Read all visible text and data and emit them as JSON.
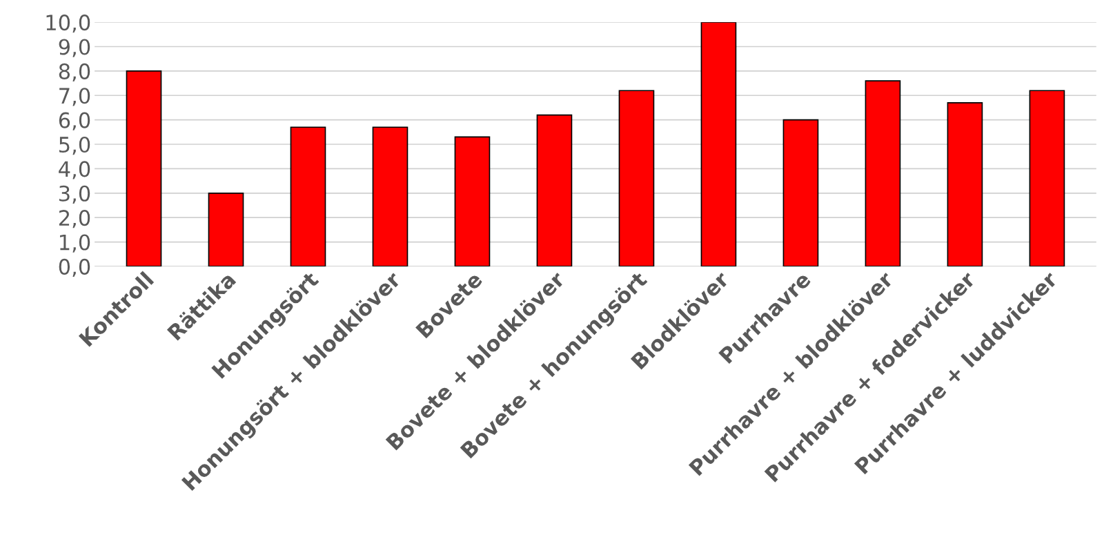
{
  "chart_data": {
    "type": "bar",
    "categories": [
      "Kontroll",
      "Rättika",
      "Honungsört",
      "Honungsört + blodklöver",
      "Bovete",
      "Bovete + blodklöver",
      "Bovete + honungsört",
      "Blodklöver",
      "Purrhavre",
      "Purrhavre + blodklöver",
      "Purrhavre + fodervicker",
      "Purrhavre + luddvicker"
    ],
    "values": [
      8.0,
      3.0,
      5.7,
      5.7,
      5.3,
      6.2,
      7.2,
      10.0,
      6.0,
      7.6,
      6.7,
      7.2
    ],
    "color": "#ff0000",
    "ylim": [
      0,
      10
    ],
    "yticks": [
      {
        "value": 0,
        "label": "0,0"
      },
      {
        "value": 1,
        "label": "1,0"
      },
      {
        "value": 2,
        "label": "2,0"
      },
      {
        "value": 3,
        "label": "3,0"
      },
      {
        "value": 4,
        "label": "4,0"
      },
      {
        "value": 5,
        "label": "5,0"
      },
      {
        "value": 6,
        "label": "6,0"
      },
      {
        "value": 7,
        "label": "7,0"
      },
      {
        "value": 8,
        "label": "8,0"
      },
      {
        "value": 9,
        "label": "9,0"
      },
      {
        "value": 10,
        "label": "10,0"
      }
    ],
    "grid": "y"
  }
}
